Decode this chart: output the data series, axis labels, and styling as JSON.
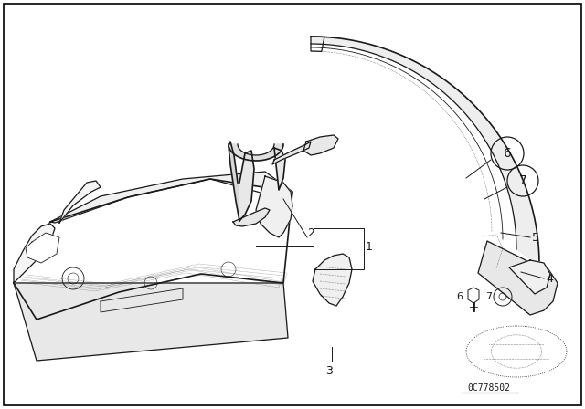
{
  "background_color": "#ffffff",
  "border_color": "#000000",
  "line_color": "#1a1a1a",
  "diagram_code": "0C778502",
  "label_fs": 9,
  "small_label_fs": 8
}
